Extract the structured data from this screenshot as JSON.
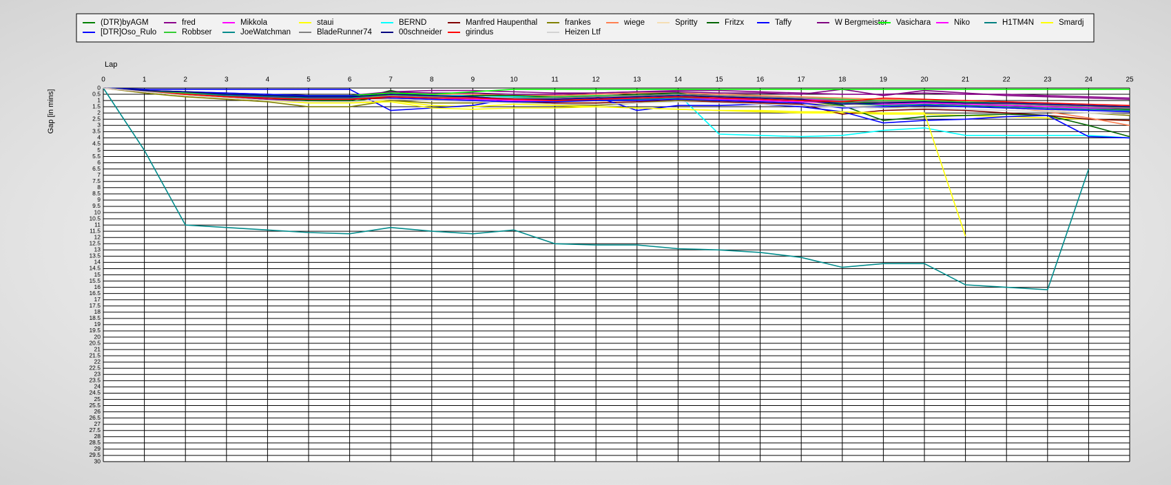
{
  "chart_data": {
    "type": "line",
    "x_label": "Lap",
    "y_label": "Gap [in mins]",
    "y_reversed": true,
    "grid": true,
    "x": [
      0,
      1,
      2,
      3,
      4,
      5,
      6,
      7,
      8,
      9,
      10,
      11,
      12,
      13,
      14,
      15,
      16,
      17,
      18,
      19,
      20,
      21,
      22,
      23,
      24,
      25
    ],
    "xlim": [
      0,
      25
    ],
    "xticks": [
      0,
      1,
      2,
      3,
      4,
      5,
      6,
      7,
      8,
      9,
      10,
      11,
      12,
      13,
      14,
      15,
      16,
      17,
      18,
      19,
      20,
      21,
      22,
      23,
      24,
      25
    ],
    "ylim": [
      0,
      30
    ],
    "yticks": [
      0,
      0.5,
      1,
      1.5,
      2,
      2.5,
      3,
      3.5,
      4,
      4.5,
      5,
      5.5,
      6,
      6.5,
      7,
      7.5,
      8,
      8.5,
      9,
      9.5,
      10,
      10.5,
      11,
      11.5,
      12,
      12.5,
      13,
      13.5,
      14,
      14.5,
      15,
      15.5,
      16,
      16.5,
      17,
      17.5,
      18,
      18.5,
      19,
      19.5,
      20,
      20.5,
      21,
      21.5,
      22,
      22.5,
      23,
      23.5,
      24,
      24.5,
      25,
      25.5,
      26,
      26.5,
      27,
      27.5,
      28,
      28.5,
      29,
      29.5,
      30
    ],
    "series": [
      {
        "name": "(DTR)byAGM",
        "color": "#008000",
        "values": [
          0,
          0.2,
          0.4,
          0.6,
          0.8,
          1.0,
          1.1,
          0.6,
          0.8,
          0.8,
          1.0,
          1.0,
          0.9,
          0.8,
          0.7,
          0.8,
          0.9,
          1.0,
          1.1,
          1.2,
          1.2,
          1.3,
          1.3,
          1.4,
          1.6,
          1.7
        ]
      },
      {
        "name": "fred",
        "color": "#8b008b",
        "values": [
          0,
          0.3,
          0.5,
          0.7,
          0.9,
          1.0,
          1.0,
          0.3,
          0.2,
          0.2,
          0.3,
          0.4,
          0.4,
          0.3,
          0.2,
          0.2,
          0.3,
          0.4,
          0.5,
          0.5,
          0.4,
          0.5,
          0.5,
          0.6,
          0.7,
          0.8
        ]
      },
      {
        "name": "Mikkola",
        "color": "#ff00ff",
        "values": [
          0,
          0.2,
          0.4,
          0.6,
          0.7,
          0.8,
          0.8,
          0.6,
          0.7,
          0.8,
          0.9,
          0.9,
          0.8,
          0.8,
          0.7,
          0.8,
          0.8,
          0.9,
          1.0,
          1.1,
          1.1,
          1.2,
          1.3,
          1.4,
          1.5,
          1.6
        ]
      },
      {
        "name": "staui",
        "color": "#ffff00",
        "values": [
          0,
          0.3,
          0.6,
          0.8,
          1.0,
          1.2,
          1.2,
          1.0,
          1.4,
          1.5,
          1.3,
          1.4,
          1.5,
          1.6,
          1.7,
          1.8,
          1.9,
          2.0,
          2.0,
          2.1,
          2.1,
          2.2,
          2.3,
          2.4,
          2.5,
          2.6
        ]
      },
      {
        "name": "BERND",
        "color": "#00ffff",
        "values": [
          0,
          0.2,
          0.4,
          0.5,
          0.6,
          0.7,
          0.7,
          0.5,
          0.6,
          0.6,
          0.7,
          0.7,
          0.6,
          0.6,
          0.5,
          3.7,
          3.8,
          3.9,
          3.8,
          3.4,
          3.2,
          3.8,
          3.8,
          3.8,
          3.8,
          4.0
        ]
      },
      {
        "name": "Manfred Haupenthal",
        "color": "#800000",
        "values": [
          0,
          0.3,
          0.5,
          0.7,
          0.8,
          0.9,
          0.9,
          0.8,
          0.9,
          1.0,
          1.1,
          1.2,
          1.2,
          1.1,
          1.0,
          1.1,
          1.2,
          1.3,
          2.1,
          1.8,
          1.7,
          1.8,
          2.0,
          2.2,
          2.5,
          2.6
        ]
      },
      {
        "name": "frankes",
        "color": "#808000",
        "values": [
          0,
          0.4,
          0.7,
          0.9,
          1.1,
          1.5,
          1.5,
          1.0,
          1.2,
          1.2,
          1.1,
          1.3,
          1.4,
          1.2,
          1.0,
          1.0,
          1.1,
          1.2,
          1.5,
          1.6,
          1.4,
          1.5,
          1.6,
          1.8,
          2.0,
          2.2
        ]
      },
      {
        "name": "wiege",
        "color": "#ff7f50",
        "values": [
          0,
          0.2,
          0.4,
          0.5,
          0.6,
          0.7,
          0.7,
          0.4,
          0.5,
          0.5,
          0.6,
          0.6,
          0.5,
          0.4,
          0.4,
          0.5,
          0.6,
          0.7,
          0.8,
          0.9,
          1.0,
          1.2,
          1.5,
          1.9,
          2.4,
          3.0
        ]
      },
      {
        "name": "Spritty",
        "color": "#f5deb3",
        "values": [
          0,
          0.3,
          0.6,
          0.8,
          1.0,
          1.2,
          1.2,
          0.9,
          1.0,
          1.0,
          1.0,
          1.1,
          1.1,
          1.0,
          0.9,
          0.9,
          1.0,
          1.1,
          1.3,
          1.4,
          1.3,
          1.5,
          1.6,
          1.8,
          2.0,
          2.1
        ]
      },
      {
        "name": "Fritzx",
        "color": "#006400",
        "values": [
          0,
          0.2,
          0.4,
          0.6,
          0.8,
          1.0,
          1.0,
          0.2,
          0.8,
          0.6,
          0.6,
          0.7,
          0.7,
          0.5,
          0.4,
          0.9,
          0.9,
          1.0,
          1.4,
          2.6,
          2.3,
          2.2,
          2.1,
          2.2,
          3.0,
          3.9
        ]
      },
      {
        "name": "Taffy",
        "color": "#0000ff",
        "values": [
          0,
          0.1,
          0.1,
          0.1,
          0.1,
          0.1,
          0.1,
          1.8,
          1.6,
          1.4,
          0.8,
          0.8,
          0.7,
          1.8,
          1.4,
          1.4,
          1.3,
          1.5,
          1.9,
          2.8,
          2.6,
          2.5,
          2.3,
          2.2,
          3.9,
          4.0
        ]
      },
      {
        "name": "W Bergmeister",
        "color": "#800080",
        "values": [
          0,
          0.2,
          0.3,
          0.4,
          0.5,
          0.6,
          0.6,
          0.3,
          0.4,
          0.4,
          0.5,
          0.5,
          0.4,
          0.3,
          0.3,
          0.4,
          0.4,
          0.5,
          0.1,
          0.6,
          0.2,
          0.4,
          0.6,
          0.7,
          0.8,
          0.9
        ]
      },
      {
        "name": "Vasichara",
        "color": "#00ff00",
        "values": [
          0,
          0.2,
          0.4,
          0.5,
          0.6,
          0.6,
          0.6,
          0.4,
          0.5,
          0.3,
          0.1,
          0.1,
          0.1,
          0.1,
          0.1,
          0.1,
          0.1,
          0.1,
          0.1,
          0.1,
          0.1,
          0.1,
          0.1,
          0.1,
          0.1,
          0.1
        ]
      },
      {
        "name": "Niko",
        "color": "#ff00ff",
        "values": [
          0,
          0.3,
          0.5,
          0.6,
          0.7,
          0.8,
          0.8,
          0.7,
          0.8,
          0.9,
          1.0,
          1.0,
          0.9,
          0.9,
          0.8,
          0.9,
          1.0,
          1.1,
          1.2,
          1.3,
          1.2,
          1.3,
          1.4,
          1.5,
          1.6,
          1.6
        ]
      },
      {
        "name": "H1TM4N",
        "color": "#008080",
        "values": [
          0,
          0.2,
          0.4,
          0.6,
          0.7,
          0.8,
          0.8,
          0.5,
          0.6,
          0.7,
          0.9,
          1.0,
          1.0,
          0.9,
          0.8,
          0.8,
          0.9,
          1.0,
          1.2,
          1.4,
          1.3,
          1.4,
          1.5,
          1.6,
          1.7,
          1.8
        ]
      },
      {
        "name": "Smardj",
        "color": "#ffff00",
        "values": [
          0,
          0.3,
          0.6,
          0.8,
          1.0,
          1.2,
          1.2,
          1.1,
          1.6,
          1.7,
          1.6,
          1.6,
          1.5,
          1.6,
          1.7,
          1.8,
          1.8,
          1.9,
          1.9,
          2.0,
          2.0,
          11.9,
          null,
          null,
          null,
          null
        ]
      },
      {
        "name": "[DTR]Oso_Rulo",
        "color": "#0000ff",
        "values": [
          0,
          0.2,
          0.3,
          0.4,
          0.5,
          0.6,
          0.6,
          0.8,
          0.9,
          1.0,
          1.1,
          1.1,
          1.0,
          1.0,
          0.9,
          1.0,
          1.1,
          1.2,
          1.6,
          1.5,
          1.4,
          1.5,
          1.6,
          1.7,
          1.8,
          1.9
        ]
      },
      {
        "name": "Robbser",
        "color": "#32cd32",
        "values": [
          0,
          0.2,
          0.4,
          0.5,
          0.6,
          0.7,
          0.7,
          0.6,
          0.7,
          0.8,
          0.8,
          0.7,
          0.6,
          0.6,
          0.5,
          0.6,
          0.7,
          0.8,
          0.9,
          1.0,
          1.0,
          1.1,
          1.2,
          1.3,
          1.4,
          1.5
        ]
      },
      {
        "name": "JoeWatchman",
        "color": "#008b8b",
        "values": [
          0,
          5.0,
          11.0,
          11.2,
          11.4,
          11.6,
          11.7,
          11.2,
          11.5,
          11.7,
          11.4,
          12.5,
          12.6,
          12.6,
          12.9,
          13.0,
          13.2,
          13.6,
          14.4,
          14.1,
          14.1,
          15.8,
          16.0,
          16.2,
          6.5,
          null
        ]
      },
      {
        "name": "BladeRunner74",
        "color": "#808080",
        "values": [
          0,
          0.3,
          0.5,
          0.7,
          0.8,
          0.9,
          0.9,
          0.6,
          0.7,
          0.8,
          0.8,
          0.8,
          0.7,
          0.6,
          0.5,
          0.6,
          0.7,
          0.8,
          1.0,
          1.1,
          1.1,
          1.2,
          1.3,
          1.4,
          1.5,
          1.6
        ]
      },
      {
        "name": "00schneider",
        "color": "#000080",
        "values": [
          0,
          0.2,
          0.3,
          0.5,
          0.6,
          0.7,
          0.7,
          0.5,
          0.6,
          0.7,
          0.9,
          0.9,
          0.8,
          0.7,
          0.6,
          0.7,
          0.8,
          0.9,
          1.3,
          1.2,
          1.1,
          1.2,
          1.2,
          1.3,
          1.4,
          1.5
        ]
      },
      {
        "name": "girindus",
        "color": "#ff0000",
        "values": [
          0,
          0.3,
          0.5,
          0.7,
          0.8,
          0.9,
          0.9,
          0.7,
          0.8,
          0.8,
          0.9,
          1.0,
          0.9,
          0.8,
          0.7,
          0.8,
          0.9,
          1.0,
          1.1,
          0.8,
          0.9,
          1.0,
          1.1,
          1.2,
          1.3,
          1.4
        ]
      },
      {
        "name": "Heizen Ltf",
        "color": "#d3d3d3",
        "values": [
          0,
          0.3,
          0.6,
          0.8,
          1.0,
          1.1,
          1.1,
          0.9,
          1.0,
          1.1,
          1.2,
          1.3,
          1.3,
          1.2,
          1.1,
          1.2,
          1.3,
          1.4,
          1.5,
          1.6,
          1.6,
          1.7,
          1.8,
          1.9,
          2.0,
          2.1
        ]
      }
    ]
  }
}
